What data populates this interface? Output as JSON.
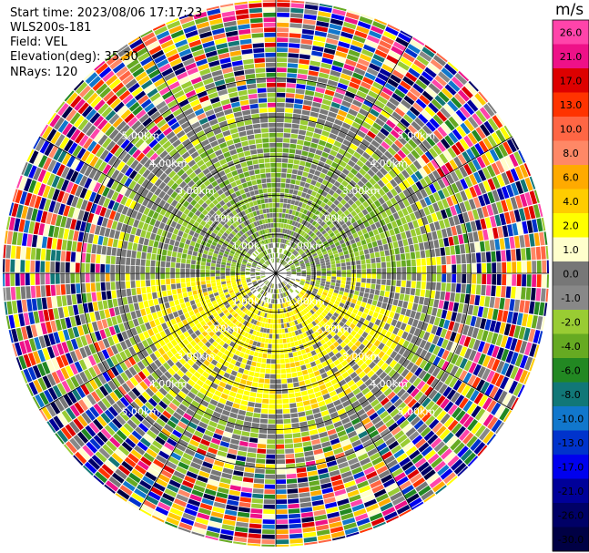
{
  "info": {
    "start_time": "Start time: 2023/08/06 17:17:23",
    "instrument": "WLS200s-181",
    "field": "Field: VEL",
    "elevation": "Elevation(deg): 35.30",
    "nrays": "NRays: 120"
  },
  "chart_data": {
    "type": "heatmap",
    "projection": "polar-ppi",
    "nrays": 120,
    "max_range_km": 7.0,
    "range_ring_labels": [
      {
        "text": "1.00km",
        "radius_km": 1
      },
      {
        "text": "2.00km",
        "radius_km": 2
      },
      {
        "text": "3.00km",
        "radius_km": 3
      },
      {
        "text": "4.00km",
        "radius_km": 4
      },
      {
        "text": "5.00km",
        "radius_km": 5
      }
    ],
    "colorbar": {
      "unit": "m/s",
      "ticks": [
        "26.0",
        "21.0",
        "17.0",
        "13.0",
        "10.0",
        "8.0",
        "6.0",
        "4.0",
        "2.0",
        "1.0",
        "0.0",
        "-1.0",
        "-2.0",
        "-4.0",
        "-6.0",
        "-8.0",
        "-10.0",
        "-13.0",
        "-17.0",
        "-21.0",
        "-26.0",
        "-30.0"
      ],
      "colors": [
        "#ff44aa",
        "#ee1188",
        "#dd0000",
        "#ff3300",
        "#ff6644",
        "#ff8866",
        "#ffaa00",
        "#ffcc00",
        "#ffff00",
        "#ffffcc",
        "#777777",
        "#888888",
        "#99cc33",
        "#66aa22",
        "#228822",
        "#117777",
        "#1177cc",
        "#0033cc",
        "#0000ee",
        "#000099",
        "#000066",
        "#000044"
      ]
    }
  }
}
